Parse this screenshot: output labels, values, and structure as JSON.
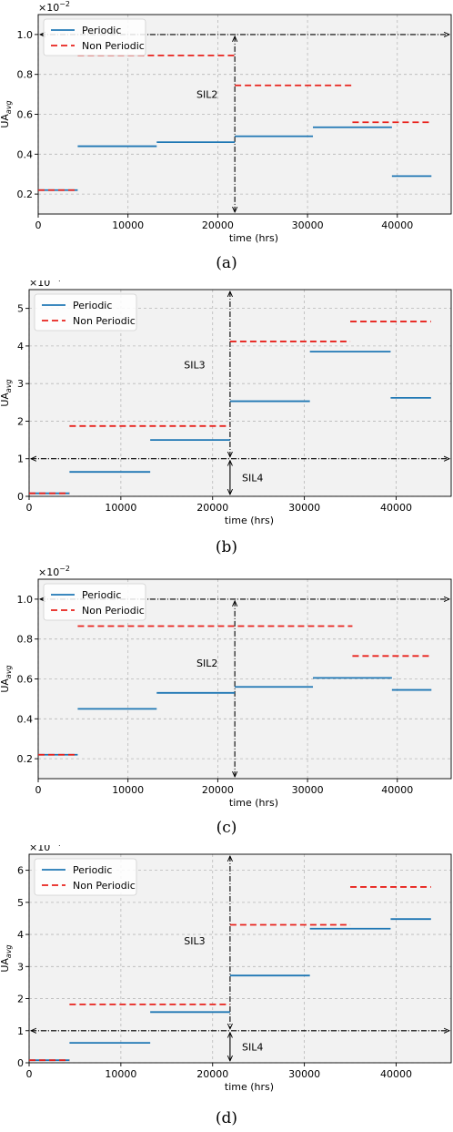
{
  "legend": {
    "periodic": "Periodic",
    "non_periodic": "Non Periodic"
  },
  "colors": {
    "periodic": "#1f77b4",
    "non_periodic": "#e8221c",
    "limit": "#000000",
    "background": "#f2f2f2",
    "grid": "#b8b8b8"
  },
  "chart_data": [
    {
      "id": "a",
      "caption": "(a)",
      "type": "line",
      "xlabel": "time (hrs)",
      "ylabel": "UA",
      "ylabel_sub": "avg",
      "scale_label": "×10",
      "scale_exp": "−2",
      "xlim": [
        0,
        46000
      ],
      "ylim": [
        0.1,
        1.1
      ],
      "xticks": [
        0,
        10000,
        20000,
        30000,
        40000
      ],
      "xtick_labels": [
        "0",
        "10000",
        "20000",
        "30000",
        "40000"
      ],
      "yticks": [
        0.2,
        0.4,
        0.6,
        0.8,
        1.0
      ],
      "ytick_labels": [
        "0.2",
        "0.4",
        "0.6",
        "0.8",
        "1.0"
      ],
      "series": [
        {
          "name": "Periodic",
          "style": "solid",
          "segments": [
            [
              0,
              4400,
              0.22
            ],
            [
              4400,
              13200,
              0.44
            ],
            [
              13200,
              21900,
              0.46
            ],
            [
              21900,
              30600,
              0.49
            ],
            [
              30600,
              39400,
              0.535
            ],
            [
              39400,
              43800,
              0.29
            ]
          ]
        },
        {
          "name": "Non Periodic",
          "style": "dashed",
          "segments": [
            [
              0,
              4400,
              0.22
            ],
            [
              4400,
              21900,
              0.895
            ],
            [
              21900,
              35000,
              0.745
            ],
            [
              35000,
              43800,
              0.56
            ]
          ]
        }
      ],
      "thresholds": [
        1.0
      ],
      "vline_x": 21900,
      "vline_to": 0.1,
      "annotations": [
        {
          "text": "SIL2",
          "x": 20000,
          "y": 0.7
        }
      ]
    },
    {
      "id": "b",
      "caption": "(b)",
      "type": "line",
      "xlabel": "time (hrs)",
      "ylabel": "UA",
      "ylabel_sub": "avg",
      "scale_label": "×10",
      "scale_exp": "−4",
      "xlim": [
        0,
        46000
      ],
      "ylim": [
        0,
        5.5
      ],
      "xticks": [
        0,
        10000,
        20000,
        30000,
        40000
      ],
      "xtick_labels": [
        "0",
        "10000",
        "20000",
        "30000",
        "40000"
      ],
      "yticks": [
        0,
        1,
        2,
        3,
        4,
        5
      ],
      "ytick_labels": [
        "0",
        "1",
        "2",
        "3",
        "4",
        "5"
      ],
      "series": [
        {
          "name": "Periodic",
          "style": "solid",
          "segments": [
            [
              0,
              4400,
              0.08
            ],
            [
              4400,
              13200,
              0.65
            ],
            [
              13200,
              21900,
              1.5
            ],
            [
              21900,
              30600,
              2.53
            ],
            [
              30600,
              39400,
              3.85
            ],
            [
              39400,
              43800,
              2.62
            ]
          ]
        },
        {
          "name": "Non Periodic",
          "style": "dashed",
          "segments": [
            [
              0,
              4400,
              0.08
            ],
            [
              4400,
              21900,
              1.87
            ],
            [
              21900,
              35000,
              4.12
            ],
            [
              35000,
              43800,
              4.65
            ]
          ]
        }
      ],
      "thresholds": [
        1.0
      ],
      "vline_x": 21900,
      "vline_to": 0,
      "annotations": [
        {
          "text": "SIL3",
          "x": 19200,
          "y": 3.5
        },
        {
          "text": "SIL4",
          "x": 23200,
          "y": 0.5
        }
      ]
    },
    {
      "id": "c",
      "caption": "(c)",
      "type": "line",
      "xlabel": "time (hrs)",
      "ylabel": "UA",
      "ylabel_sub": "avg",
      "scale_label": "×10",
      "scale_exp": "−2",
      "xlim": [
        0,
        46000
      ],
      "ylim": [
        0.1,
        1.1
      ],
      "xticks": [
        0,
        10000,
        20000,
        30000,
        40000
      ],
      "xtick_labels": [
        "0",
        "10000",
        "20000",
        "30000",
        "40000"
      ],
      "yticks": [
        0.2,
        0.4,
        0.6,
        0.8,
        1.0
      ],
      "ytick_labels": [
        "0.2",
        "0.4",
        "0.6",
        "0.8",
        "1.0"
      ],
      "series": [
        {
          "name": "Periodic",
          "style": "solid",
          "segments": [
            [
              0,
              4400,
              0.22
            ],
            [
              4400,
              13200,
              0.45
            ],
            [
              13200,
              21900,
              0.53
            ],
            [
              21900,
              30600,
              0.56
            ],
            [
              30600,
              39400,
              0.605
            ],
            [
              39400,
              43800,
              0.545
            ]
          ]
        },
        {
          "name": "Non Periodic",
          "style": "dashed",
          "segments": [
            [
              0,
              4400,
              0.22
            ],
            [
              4400,
              35000,
              0.865
            ],
            [
              35000,
              43800,
              0.715
            ]
          ]
        }
      ],
      "thresholds": [
        1.0
      ],
      "vline_x": 21900,
      "vline_to": 0.1,
      "annotations": [
        {
          "text": "SIL2",
          "x": 20000,
          "y": 0.68
        }
      ]
    },
    {
      "id": "d",
      "caption": "(d)",
      "type": "line",
      "xlabel": "time (hrs)",
      "ylabel": "UA",
      "ylabel_sub": "avg",
      "scale_label": "×10",
      "scale_exp": "−4",
      "xlim": [
        0,
        46000
      ],
      "ylim": [
        0,
        6.5
      ],
      "xticks": [
        0,
        10000,
        20000,
        30000,
        40000
      ],
      "xtick_labels": [
        "0",
        "10000",
        "20000",
        "30000",
        "40000"
      ],
      "yticks": [
        0,
        1,
        2,
        3,
        4,
        5,
        6
      ],
      "ytick_labels": [
        "0",
        "1",
        "2",
        "3",
        "4",
        "5",
        "6"
      ],
      "series": [
        {
          "name": "Periodic",
          "style": "solid",
          "segments": [
            [
              0,
              4400,
              0.08
            ],
            [
              4400,
              13200,
              0.62
            ],
            [
              13200,
              21900,
              1.58
            ],
            [
              21900,
              30600,
              2.72
            ],
            [
              30600,
              39400,
              4.18
            ],
            [
              39400,
              43800,
              4.48
            ]
          ]
        },
        {
          "name": "Non Periodic",
          "style": "dashed",
          "segments": [
            [
              0,
              4400,
              0.08
            ],
            [
              4400,
              21900,
              1.82
            ],
            [
              21900,
              35000,
              4.3
            ],
            [
              35000,
              43800,
              5.48
            ]
          ]
        }
      ],
      "thresholds": [
        1.0
      ],
      "vline_x": 21900,
      "vline_to": 0,
      "annotations": [
        {
          "text": "SIL3",
          "x": 19200,
          "y": 3.8
        },
        {
          "text": "SIL4",
          "x": 23200,
          "y": 0.5
        }
      ]
    }
  ]
}
